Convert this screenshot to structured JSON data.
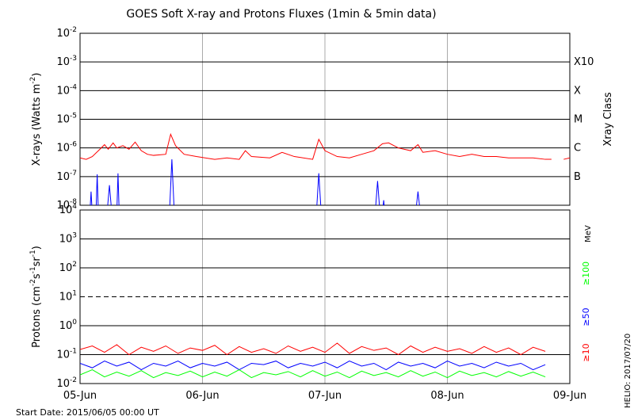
{
  "title": "GOES Soft X-ray and Protons Fluxes   (1min & 5min data)",
  "start_date": "Start Date: 2015/06/05 00:00 UT",
  "stamp": "HELIO: 2017/07/20",
  "chart_data": [
    {
      "type": "line",
      "log_y": true,
      "grid": true,
      "y_label": "X-rays (Watts m^-2)",
      "xlim": [
        0,
        4
      ],
      "xticks": [
        0,
        1,
        2,
        3,
        4
      ],
      "ylim": [
        1e-08,
        0.01
      ],
      "yticks": [
        {
          "value": 1e-08,
          "label": "10^-8"
        },
        {
          "value": 1e-07,
          "label": "10^-7"
        },
        {
          "value": 1e-06,
          "label": "10^-6"
        },
        {
          "value": 1e-05,
          "label": "10^-5"
        },
        {
          "value": 0.0001,
          "label": "10^-4"
        },
        {
          "value": 0.001,
          "label": "10^-3"
        },
        {
          "value": 0.01,
          "label": "10^-2"
        }
      ],
      "class_label": "Xray Class",
      "class_ticks": [
        {
          "value": 0.001,
          "label": "X10"
        },
        {
          "value": 0.0001,
          "label": "X"
        },
        {
          "value": 1e-05,
          "label": "M"
        },
        {
          "value": 1e-06,
          "label": "C"
        },
        {
          "value": 1e-07,
          "label": "B"
        }
      ],
      "series": [
        {
          "color": "#ff0000",
          "x": [
            0,
            0.05,
            0.1,
            0.15,
            0.2,
            0.23,
            0.27,
            0.3,
            0.35,
            0.4,
            0.45,
            0.5,
            0.55,
            0.6,
            0.7,
            0.74,
            0.78,
            0.85,
            0.95,
            1.1,
            1.2,
            1.3,
            1.35,
            1.4,
            1.55,
            1.65,
            1.75,
            1.9,
            1.95,
            2.0,
            2.1,
            2.2,
            2.3,
            2.4,
            2.47,
            2.52,
            2.6,
            2.7,
            2.76,
            2.8,
            2.9,
            3.0,
            3.1,
            3.2,
            3.3,
            3.4,
            3.5,
            3.6,
            3.7,
            3.8,
            3.85,
            3.9,
            3.95,
            4.0
          ],
          "values": [
            4.5e-07,
            4e-07,
            5e-07,
            8e-07,
            1.3e-06,
            9e-07,
            1.5e-06,
            1e-06,
            1.2e-06,
            9e-07,
            1.6e-06,
            8e-07,
            6e-07,
            5.5e-07,
            6e-07,
            3e-06,
            1.2e-06,
            6e-07,
            5e-07,
            4e-07,
            4.5e-07,
            4e-07,
            8e-07,
            5e-07,
            4.5e-07,
            7e-07,
            5e-07,
            4e-07,
            2e-06,
            8e-07,
            5e-07,
            4.5e-07,
            6e-07,
            8e-07,
            1.4e-06,
            1.5e-06,
            1e-06,
            8e-07,
            1.3e-06,
            7e-07,
            8e-07,
            6e-07,
            5e-07,
            6e-07,
            5e-07,
            5e-07,
            4.5e-07,
            4.5e-07,
            4.5e-07,
            4e-07,
            4e-07,
            null,
            4e-07,
            4.5e-07
          ]
        },
        {
          "color": "#0000ff",
          "x": [
            0.08,
            0.09,
            0.1,
            0.13,
            0.14,
            0.15,
            0.22,
            0.24,
            0.26,
            0.3,
            0.31,
            0.32,
            0.73,
            0.75,
            0.77,
            1.93,
            1.95,
            1.97,
            2.41,
            2.43,
            2.45,
            2.47,
            2.48,
            2.49,
            2.74,
            2.76,
            2.78
          ],
          "values": [
            5e-09,
            3e-08,
            5e-09,
            5e-09,
            1.2e-07,
            5e-09,
            5e-09,
            5e-08,
            5e-09,
            5e-09,
            1.3e-07,
            5e-09,
            5e-09,
            4e-07,
            5e-09,
            5e-09,
            1.3e-07,
            5e-09,
            5e-09,
            7e-08,
            5e-09,
            5e-09,
            1.5e-08,
            5e-09,
            5e-09,
            3e-08,
            5e-09
          ]
        }
      ]
    },
    {
      "type": "line",
      "log_y": true,
      "grid": true,
      "y_label": "Protons (cm^-2s^-1sr^-1)",
      "unit": "MeV",
      "threshold": 10,
      "xlim": [
        0,
        4
      ],
      "xticks": [
        {
          "value": 0,
          "label": "05-Jun"
        },
        {
          "value": 1,
          "label": "06-Jun"
        },
        {
          "value": 2,
          "label": "07-Jun"
        },
        {
          "value": 3,
          "label": "08-Jun"
        },
        {
          "value": 4,
          "label": "09-Jun"
        }
      ],
      "ylim": [
        0.01,
        10000
      ],
      "yticks": [
        {
          "value": 0.01,
          "label": "10^-2"
        },
        {
          "value": 0.1,
          "label": "10^-1"
        },
        {
          "value": 1,
          "label": "10^0"
        },
        {
          "value": 10,
          "label": "10^1"
        },
        {
          "value": 100,
          "label": "10^2"
        },
        {
          "value": 1000,
          "label": "10^3"
        },
        {
          "value": 10000,
          "label": "10^4"
        }
      ],
      "series": [
        {
          "name": "≥10",
          "color": "#ff0000",
          "x": [
            0,
            0.1,
            0.2,
            0.3,
            0.4,
            0.5,
            0.6,
            0.7,
            0.8,
            0.9,
            1,
            1.1,
            1.2,
            1.3,
            1.4,
            1.5,
            1.6,
            1.7,
            1.8,
            1.9,
            2,
            2.1,
            2.2,
            2.3,
            2.4,
            2.5,
            2.6,
            2.7,
            2.8,
            2.9,
            3,
            3.1,
            3.2,
            3.3,
            3.4,
            3.5,
            3.6,
            3.7,
            3.8,
            3.9,
            4
          ],
          "values": [
            0.15,
            0.2,
            0.12,
            0.22,
            0.1,
            0.18,
            0.13,
            0.2,
            0.11,
            0.17,
            0.14,
            0.21,
            0.1,
            0.19,
            0.12,
            0.16,
            0.11,
            0.2,
            0.13,
            0.18,
            0.12,
            0.25,
            0.11,
            0.19,
            0.14,
            0.17,
            0.1,
            0.2,
            0.12,
            0.18,
            0.13,
            0.16,
            0.11,
            0.19,
            0.12,
            0.17,
            0.1,
            0.18,
            0.13,
            null,
            0.15
          ]
        },
        {
          "name": "≥50",
          "color": "#0000ff",
          "x": [
            0,
            0.1,
            0.2,
            0.3,
            0.4,
            0.5,
            0.6,
            0.7,
            0.8,
            0.9,
            1,
            1.1,
            1.2,
            1.3,
            1.4,
            1.5,
            1.6,
            1.7,
            1.8,
            1.9,
            2,
            2.1,
            2.2,
            2.3,
            2.4,
            2.5,
            2.6,
            2.7,
            2.8,
            2.9,
            3,
            3.1,
            3.2,
            3.3,
            3.4,
            3.5,
            3.6,
            3.7,
            3.8,
            3.9,
            4
          ],
          "values": [
            0.05,
            0.035,
            0.06,
            0.04,
            0.055,
            0.03,
            0.05,
            0.04,
            0.06,
            0.035,
            0.05,
            0.04,
            0.055,
            0.03,
            0.05,
            0.045,
            0.06,
            0.035,
            0.05,
            0.04,
            0.055,
            0.035,
            0.06,
            0.04,
            0.05,
            0.03,
            0.055,
            0.04,
            0.05,
            0.035,
            0.06,
            0.04,
            0.05,
            0.035,
            0.055,
            0.04,
            0.05,
            0.03,
            0.045,
            null,
            0.04
          ]
        },
        {
          "name": "≥100",
          "color": "#00ff00",
          "x": [
            0,
            0.1,
            0.2,
            0.3,
            0.4,
            0.5,
            0.6,
            0.7,
            0.8,
            0.9,
            1,
            1.1,
            1.2,
            1.3,
            1.4,
            1.5,
            1.6,
            1.7,
            1.8,
            1.9,
            2,
            2.1,
            2.2,
            2.3,
            2.4,
            2.5,
            2.6,
            2.7,
            2.8,
            2.9,
            3,
            3.1,
            3.2,
            3.3,
            3.4,
            3.5,
            3.6,
            3.7,
            3.8,
            3.9,
            4
          ],
          "values": [
            0.02,
            0.03,
            0.017,
            0.025,
            0.018,
            0.028,
            0.016,
            0.024,
            0.019,
            0.027,
            0.017,
            0.025,
            0.018,
            0.03,
            0.016,
            0.024,
            0.02,
            0.026,
            0.017,
            0.028,
            0.018,
            0.025,
            0.016,
            0.027,
            0.019,
            0.024,
            0.017,
            0.028,
            0.018,
            0.025,
            0.016,
            0.027,
            0.019,
            0.024,
            0.017,
            0.026,
            0.018,
            0.025,
            0.017,
            null,
            0.02
          ]
        }
      ]
    }
  ]
}
